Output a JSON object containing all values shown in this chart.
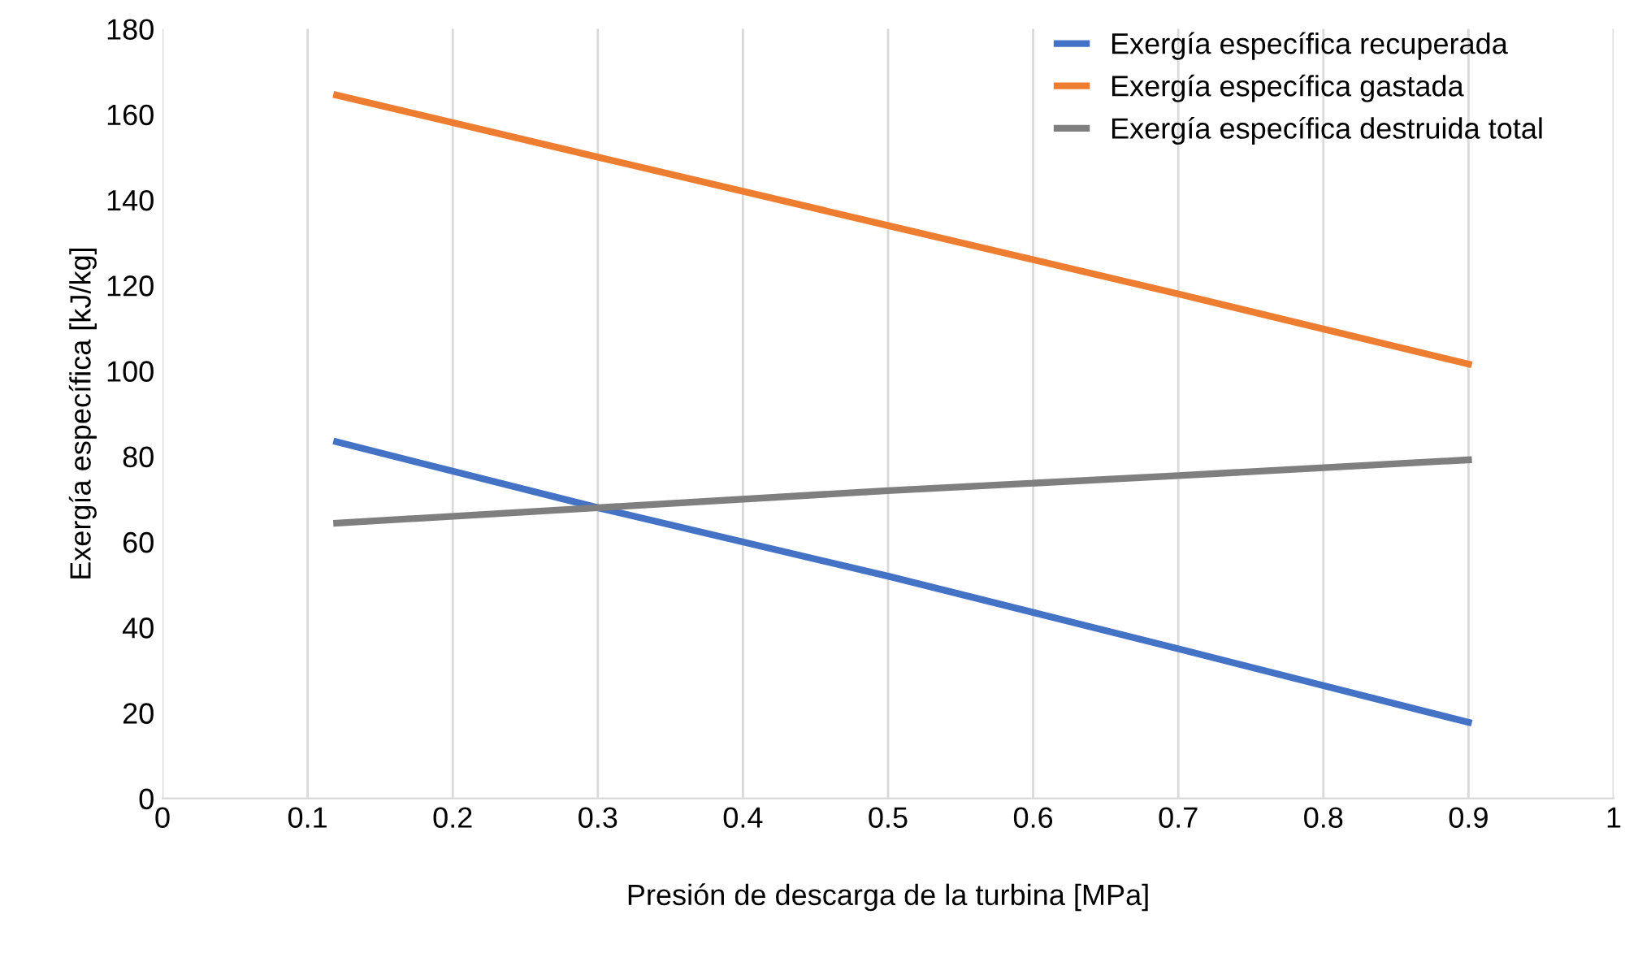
{
  "chart_data": {
    "type": "line",
    "xlabel": "Presión de descarga de la turbina [MPa]",
    "ylabel": "Exergía específica [kJ/kg]",
    "x": [
      0.12,
      0.3,
      0.5,
      0.7,
      0.9
    ],
    "series": [
      {
        "name": "Exergía específica recuperada",
        "color": "#4472c4",
        "values": [
          83.4,
          68,
          52,
          35,
          17.8
        ]
      },
      {
        "name": "Exergía específica gastada",
        "color": "#ed7d31",
        "values": [
          164.5,
          150,
          134,
          118,
          101.6
        ]
      },
      {
        "name": "Exergía específica destruida total",
        "color": "#7f7f7f",
        "values": [
          64.4,
          68,
          72,
          75.5,
          79.2
        ]
      }
    ],
    "xlim": [
      0,
      1
    ],
    "xticks": [
      0,
      0.1,
      0.2,
      0.3,
      0.4,
      0.5,
      0.6,
      0.7,
      0.8,
      0.9,
      1
    ],
    "ylim": [
      0,
      180
    ],
    "yticks": [
      0,
      20,
      40,
      60,
      80,
      100,
      120,
      140,
      160,
      180
    ],
    "grid": "x",
    "legend": "top right",
    "marker": "none",
    "line_style": "solid"
  }
}
